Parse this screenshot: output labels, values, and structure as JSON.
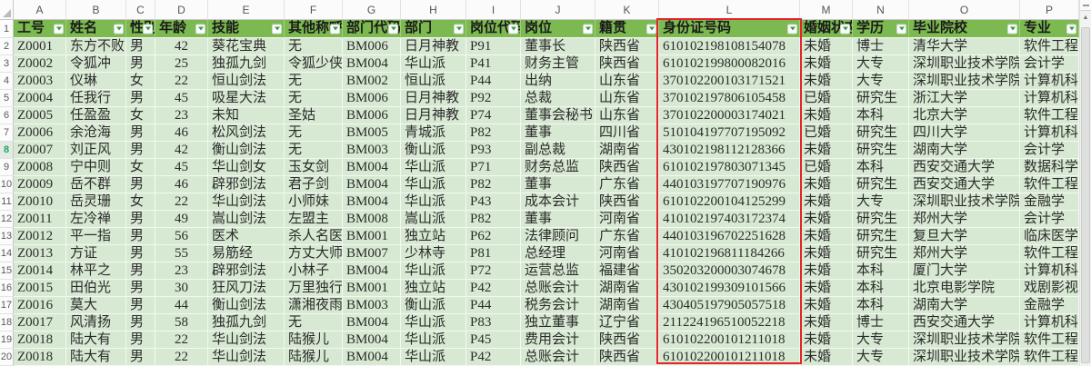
{
  "app": {
    "kind": "spreadsheet"
  },
  "colors": {
    "header_green": "#7cb950",
    "row_green": "#d8e9d3",
    "annotation_red": "#e3242b",
    "highlighted_row_number_green": "#21a366"
  },
  "column_letters": [
    "A",
    "B",
    "C",
    "D",
    "E",
    "F",
    "G",
    "H",
    "I",
    "J",
    "K",
    "L",
    "M",
    "N",
    "O",
    "P"
  ],
  "annotation": {
    "type": "red-box",
    "around_column": "L"
  },
  "highlighted_row_number": 8,
  "scrollbar": {
    "up_arrow": "▲"
  },
  "sheet": {
    "header_row_number": "1",
    "headers": [
      "工号",
      "姓名",
      "性别",
      "年龄",
      "技能",
      "其他称呼",
      "部门代码",
      "部门",
      "岗位代码",
      "岗位",
      "籍贯",
      "身份证号码",
      "婚姻状态",
      "学历",
      "毕业院校",
      "专业"
    ],
    "rows": [
      {
        "n": "2",
        "cells": [
          "Z0001",
          "东方不败",
          "男",
          "42",
          "葵花宝典",
          "无",
          "BM006",
          "日月神教",
          "P91",
          "董事长",
          "陕西省",
          "610102198108154078",
          "未婚",
          "博士",
          "清华大学",
          "软件工程"
        ]
      },
      {
        "n": "3",
        "cells": [
          "Z0002",
          "令狐冲",
          "男",
          "25",
          "独孤九剑",
          "令狐少侠",
          "BM004",
          "华山派",
          "P41",
          "财务主管",
          "陕西省",
          "610102199800082016",
          "未婚",
          "大专",
          "深圳职业技术学院",
          "会计学"
        ]
      },
      {
        "n": "4",
        "cells": [
          "Z0003",
          "仪琳",
          "女",
          "22",
          "恒山剑法",
          "无",
          "BM002",
          "恒山派",
          "P44",
          "出纳",
          "山东省",
          "370102200103171521",
          "未婚",
          "大专",
          "深圳职业技术学院",
          "计算机科学与技术"
        ]
      },
      {
        "n": "5",
        "cells": [
          "Z0004",
          "任我行",
          "男",
          "45",
          "吸星大法",
          "无",
          "BM006",
          "日月神教",
          "P92",
          "总裁",
          "山东省",
          "370102197806105458",
          "已婚",
          "研究生",
          "浙江大学",
          "计算机科学与技术"
        ]
      },
      {
        "n": "6",
        "cells": [
          "Z0005",
          "任盈盈",
          "女",
          "23",
          "未知",
          "圣姑",
          "BM006",
          "日月神教",
          "P74",
          "董事会秘书",
          "山东省",
          "370102200003174021",
          "未婚",
          "本科",
          "北京大学",
          "软件工程"
        ]
      },
      {
        "n": "7",
        "cells": [
          "Z0006",
          "余沧海",
          "男",
          "46",
          "松风剑法",
          "无",
          "BM005",
          "青城派",
          "P82",
          "董事",
          "四川省",
          "510104197707195092",
          "已婚",
          "研究生",
          "四川大学",
          "计算机科学与技术"
        ]
      },
      {
        "n": "8",
        "cells": [
          "Z0007",
          "刘正风",
          "男",
          "42",
          "衡山剑法",
          "无",
          "BM003",
          "衡山派",
          "P93",
          "副总裁",
          "湖南省",
          "430102198112128366",
          "未婚",
          "研究生",
          "湖南大学",
          "会计学"
        ]
      },
      {
        "n": "9",
        "cells": [
          "Z0008",
          "宁中则",
          "女",
          "45",
          "华山剑女",
          "玉女剑",
          "BM004",
          "华山派",
          "P71",
          "财务总监",
          "陕西省",
          "610102197803071345",
          "已婚",
          "本科",
          "西安交通大学",
          "数据科学与大数据技术"
        ]
      },
      {
        "n": "10",
        "cells": [
          "Z0009",
          "岳不群",
          "男",
          "46",
          "辟邪剑法",
          "君子剑",
          "BM004",
          "华山派",
          "P82",
          "董事",
          "广东省",
          "440103197707190976",
          "未婚",
          "研究生",
          "西安交通大学",
          "软件工程"
        ]
      },
      {
        "n": "11",
        "cells": [
          "Z0010",
          "岳灵珊",
          "女",
          "22",
          "华山剑法",
          "小师妹",
          "BM004",
          "华山派",
          "P43",
          "成本会计",
          "陕西省",
          "610102200104125299",
          "未婚",
          "大专",
          "深圳职业技术学院",
          "金融学"
        ]
      },
      {
        "n": "12",
        "cells": [
          "Z0011",
          "左冷禅",
          "男",
          "49",
          "嵩山剑法",
          "左盟主",
          "BM008",
          "嵩山派",
          "P82",
          "董事",
          "河南省",
          "410102197403172374",
          "未婚",
          "研究生",
          "郑州大学",
          "会计学"
        ]
      },
      {
        "n": "13",
        "cells": [
          "Z0012",
          "平一指",
          "男",
          "56",
          "医术",
          "杀人名医",
          "BM001",
          "独立站",
          "P62",
          "法律顾问",
          "广东省",
          "440103196702251628",
          "未婚",
          "研究生",
          "复旦大学",
          "临床医学"
        ]
      },
      {
        "n": "14",
        "cells": [
          "Z0013",
          "方证",
          "男",
          "55",
          "易筋经",
          "方丈大师",
          "BM007",
          "少林寺",
          "P81",
          "总经理",
          "河南省",
          "410102196811184266",
          "未婚",
          "研究生",
          "郑州大学",
          "软件工程"
        ]
      },
      {
        "n": "15",
        "cells": [
          "Z0014",
          "林平之",
          "男",
          "23",
          "辟邪剑法",
          "小林子",
          "BM004",
          "华山派",
          "P72",
          "运营总监",
          "福建省",
          "350203200003074678",
          "未婚",
          "本科",
          "厦门大学",
          "计算机科学与技术"
        ]
      },
      {
        "n": "16",
        "cells": [
          "Z0015",
          "田伯光",
          "男",
          "30",
          "狂风刀法",
          "万里独行",
          "BM001",
          "独立站",
          "P42",
          "总账会计",
          "湖南省",
          "430102199309101566",
          "未婚",
          "本科",
          "北京电影学院",
          "戏剧影视文学"
        ]
      },
      {
        "n": "17",
        "cells": [
          "Z0016",
          "莫大",
          "男",
          "44",
          "衡山剑法",
          "潇湘夜雨",
          "BM003",
          "衡山派",
          "P44",
          "税务会计",
          "湖南省",
          "430405197905057518",
          "未婚",
          "本科",
          "湖南大学",
          "金融学"
        ]
      },
      {
        "n": "18",
        "cells": [
          "Z0017",
          "风清扬",
          "男",
          "58",
          "独孤九剑",
          "无",
          "BM004",
          "华山派",
          "P83",
          "独立董事",
          "辽宁省",
          "211224196510052218",
          "未婚",
          "博士",
          "西安交通大学",
          "计算机科学与技术"
        ]
      },
      {
        "n": "19",
        "cells": [
          "Z0018",
          "陆大有",
          "男",
          "22",
          "华山剑法",
          "陆猴儿",
          "BM004",
          "华山派",
          "P45",
          "费用会计",
          "陕西省",
          "610102200101211018",
          "未婚",
          "大专",
          "深圳职业技术学院",
          "软件工程"
        ]
      },
      {
        "n": "20",
        "cells": [
          "Z0018",
          "陆大有",
          "男",
          "22",
          "华山剑法",
          "陆猴儿",
          "BM004",
          "华山派",
          "P42",
          "总账会计",
          "陕西省",
          "610102200101211018",
          "未婚",
          "大专",
          "深圳职业技术学院",
          "软件工程"
        ]
      }
    ]
  }
}
